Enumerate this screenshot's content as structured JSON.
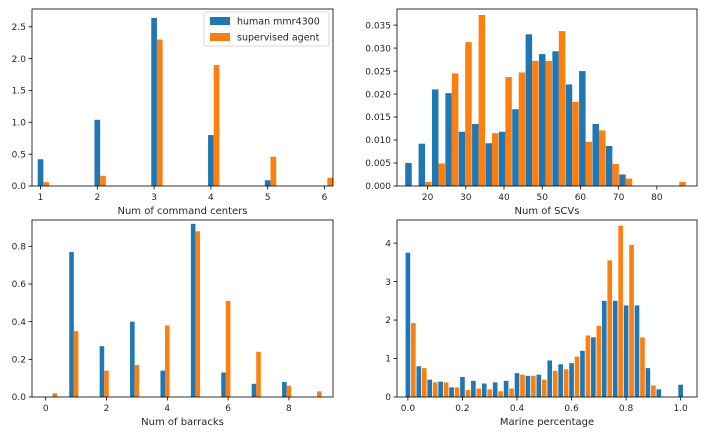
{
  "colors": {
    "human": "#1f77b4",
    "agent": "#ff7f0e"
  },
  "legend": [
    {
      "name": "human mmr4300",
      "color": "#1f77b4"
    },
    {
      "name": "supervised agent",
      "color": "#ff7f0e"
    }
  ],
  "chart_data": [
    {
      "type": "bar",
      "title": "",
      "xlabel": "Num of command centers",
      "ylabel": "",
      "xlim": [
        0.85,
        6.15
      ],
      "ylim": [
        0,
        2.78
      ],
      "bar_width": 0.1,
      "xticks": [
        1,
        2,
        3,
        4,
        5,
        6
      ],
      "xtick_labels": [
        "1",
        "2",
        "3",
        "4",
        "5",
        "6"
      ],
      "yticks": [
        0,
        0.5,
        1.0,
        1.5,
        2.0,
        2.5
      ],
      "ytick_labels": [
        "0.0",
        "0.5",
        "1.0",
        "1.5",
        "2.0",
        "2.5"
      ],
      "legend": "top-right",
      "series": [
        {
          "name": "human mmr4300",
          "color": "#1f77b4",
          "x": [
            1,
            2,
            3,
            4,
            5,
            6
          ],
          "values": [
            0.42,
            1.04,
            2.64,
            0.8,
            0.09,
            0.0
          ]
        },
        {
          "name": "supervised agent",
          "color": "#ff7f0e",
          "x": [
            1.1,
            2.1,
            3.1,
            4.1,
            5.1,
            6.1
          ],
          "values": [
            0.06,
            0.16,
            2.3,
            1.9,
            0.46,
            0.13
          ]
        }
      ]
    },
    {
      "type": "bar",
      "title": "",
      "xlabel": "Num of SCVs",
      "ylabel": "",
      "xlim": [
        12,
        90.5
      ],
      "ylim": [
        0,
        0.0385
      ],
      "bar_width": 1.7,
      "xticks": [
        20,
        30,
        40,
        50,
        60,
        70,
        80
      ],
      "xtick_labels": [
        "20",
        "30",
        "40",
        "50",
        "60",
        "70",
        "80"
      ],
      "yticks": [
        0,
        0.005,
        0.01,
        0.015,
        0.02,
        0.025,
        0.03,
        0.035
      ],
      "ytick_labels": [
        "0.000",
        "0.005",
        "0.010",
        "0.015",
        "0.020",
        "0.025",
        "0.030",
        "0.035"
      ],
      "series": [
        {
          "name": "human mmr4300",
          "color": "#1f77b4",
          "x": [
            15,
            18.5,
            22,
            25.5,
            29,
            32.5,
            36,
            39.5,
            43,
            46.5,
            50,
            53.5,
            57,
            60.5,
            64,
            67.5,
            71
          ],
          "values": [
            0.005,
            0.0092,
            0.021,
            0.0202,
            0.0118,
            0.0135,
            0.0093,
            0.0118,
            0.0167,
            0.033,
            0.0287,
            0.0293,
            0.0221,
            0.025,
            0.0135,
            0.0087,
            0.0025
          ]
        },
        {
          "name": "supervised agent",
          "color": "#ff7f0e",
          "x": [
            16.7,
            20.2,
            23.7,
            27.2,
            30.7,
            34.2,
            37.7,
            41.2,
            44.7,
            48.2,
            51.7,
            55.2,
            58.7,
            62.2,
            65.7,
            69.2,
            72.7,
            86.7
          ],
          "values": [
            0.0,
            0.0009,
            0.0049,
            0.0245,
            0.0313,
            0.0372,
            0.0115,
            0.0237,
            0.0247,
            0.0272,
            0.0272,
            0.0337,
            0.0183,
            0.0096,
            0.0121,
            0.0048,
            0.0016,
            0.0009
          ]
        }
      ]
    },
    {
      "type": "bar",
      "title": "",
      "xlabel": "Num of barracks",
      "ylabel": "",
      "xlim": [
        -0.45,
        9.45
      ],
      "ylim": [
        0,
        0.94
      ],
      "bar_width": 0.15,
      "xticks": [
        0,
        2,
        4,
        6,
        8
      ],
      "xtick_labels": [
        "0",
        "2",
        "4",
        "6",
        "8"
      ],
      "yticks": [
        0,
        0.2,
        0.4,
        0.6,
        0.8
      ],
      "ytick_labels": [
        "0.0",
        "0.2",
        "0.4",
        "0.6",
        "0.8"
      ],
      "series": [
        {
          "name": "human mmr4300",
          "color": "#1f77b4",
          "x": [
            0.85,
            1.85,
            2.85,
            3.85,
            4.85,
            5.85,
            6.85,
            7.85
          ],
          "values": [
            0.77,
            0.27,
            0.4,
            0.14,
            0.92,
            0.13,
            0.07,
            0.08
          ]
        },
        {
          "name": "supervised agent",
          "color": "#ff7f0e",
          "x": [
            0.3,
            1.0,
            2.0,
            3.0,
            4.0,
            5.0,
            6.0,
            7.0,
            8.0,
            9.0
          ],
          "values": [
            0.02,
            0.35,
            0.14,
            0.17,
            0.38,
            0.88,
            0.51,
            0.24,
            0.06,
            0.03
          ]
        }
      ]
    },
    {
      "type": "bar",
      "title": "",
      "xlabel": "Marine percentage",
      "ylabel": "",
      "xlim": [
        -0.04,
        1.06
      ],
      "ylim": [
        0,
        4.6
      ],
      "bar_width": 0.017,
      "xticks": [
        0,
        0.2,
        0.4,
        0.6,
        0.8,
        1.0
      ],
      "xtick_labels": [
        "0.0",
        "0.2",
        "0.4",
        "0.6",
        "0.8",
        "1.0"
      ],
      "yticks": [
        0,
        1,
        2,
        3,
        4
      ],
      "ytick_labels": [
        "0",
        "1",
        "2",
        "3",
        "4"
      ],
      "series": [
        {
          "name": "human mmr4300",
          "color": "#1f77b4",
          "x": [
            0.0,
            0.04,
            0.08,
            0.12,
            0.16,
            0.2,
            0.24,
            0.28,
            0.32,
            0.36,
            0.4,
            0.44,
            0.48,
            0.52,
            0.56,
            0.6,
            0.64,
            0.68,
            0.72,
            0.76,
            0.8,
            0.84,
            0.88,
            0.92,
            0.96,
            1.0
          ],
          "values": [
            3.75,
            0.8,
            0.45,
            0.4,
            0.25,
            0.52,
            0.42,
            0.35,
            0.38,
            0.42,
            0.62,
            0.55,
            0.58,
            0.95,
            0.85,
            0.88,
            1.2,
            1.55,
            2.5,
            2.5,
            2.38,
            2.38,
            0.75,
            0.2,
            0.0,
            0.32
          ]
        },
        {
          "name": "supervised agent",
          "color": "#ff7f0e",
          "x": [
            0.02,
            0.06,
            0.1,
            0.14,
            0.18,
            0.22,
            0.26,
            0.3,
            0.34,
            0.38,
            0.42,
            0.46,
            0.5,
            0.54,
            0.58,
            0.62,
            0.66,
            0.7,
            0.74,
            0.78,
            0.82,
            0.86,
            0.9,
            0.94
          ],
          "values": [
            1.92,
            0.75,
            0.38,
            0.38,
            0.25,
            0.18,
            0.22,
            0.2,
            0.15,
            0.22,
            0.58,
            0.55,
            0.45,
            0.68,
            0.72,
            1.05,
            1.6,
            1.85,
            3.55,
            4.45,
            3.95,
            1.55,
            0.3,
            0.0
          ]
        }
      ]
    }
  ]
}
